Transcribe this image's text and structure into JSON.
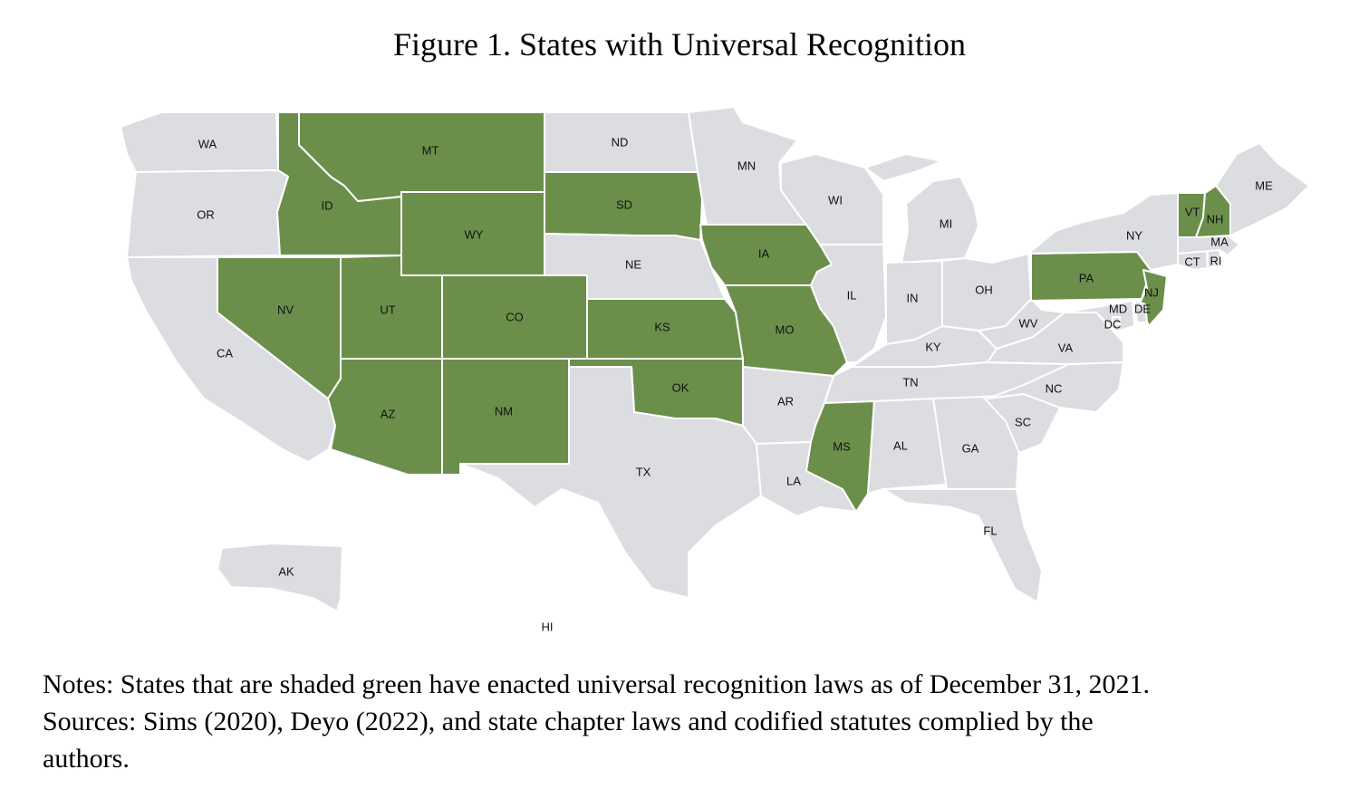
{
  "title": "Figure 1. States with Universal Recognition",
  "notes": {
    "line1": "Notes: States that are shaded green have enacted universal recognition laws as of December 31, 2021.",
    "line2": "Sources: Sims (2020), Deyo (2022), and state chapter laws and codified statutes complied by the",
    "line3": "authors."
  },
  "legend_colors": {
    "shaded": "#6b8f4b",
    "unshaded": "#dcdde0"
  },
  "states": {
    "WA": {
      "label": "WA",
      "shaded": false
    },
    "OR": {
      "label": "OR",
      "shaded": false
    },
    "CA": {
      "label": "CA",
      "shaded": false
    },
    "ID": {
      "label": "ID",
      "shaded": true
    },
    "MT": {
      "label": "MT",
      "shaded": true
    },
    "WY": {
      "label": "WY",
      "shaded": true
    },
    "NV": {
      "label": "NV",
      "shaded": true
    },
    "UT": {
      "label": "UT",
      "shaded": true
    },
    "CO": {
      "label": "CO",
      "shaded": true
    },
    "AZ": {
      "label": "AZ",
      "shaded": true
    },
    "NM": {
      "label": "NM",
      "shaded": true
    },
    "ND": {
      "label": "ND",
      "shaded": false
    },
    "SD": {
      "label": "SD",
      "shaded": true
    },
    "NE": {
      "label": "NE",
      "shaded": false
    },
    "KS": {
      "label": "KS",
      "shaded": true
    },
    "OK": {
      "label": "OK",
      "shaded": true
    },
    "TX": {
      "label": "TX",
      "shaded": false
    },
    "MN": {
      "label": "MN",
      "shaded": false
    },
    "IA": {
      "label": "IA",
      "shaded": true
    },
    "MO": {
      "label": "MO",
      "shaded": true
    },
    "AR": {
      "label": "AR",
      "shaded": false
    },
    "LA": {
      "label": "LA",
      "shaded": false
    },
    "WI": {
      "label": "WI",
      "shaded": false
    },
    "IL": {
      "label": "IL",
      "shaded": false
    },
    "MI": {
      "label": "MI",
      "shaded": false
    },
    "IN": {
      "label": "IN",
      "shaded": false
    },
    "OH": {
      "label": "OH",
      "shaded": false
    },
    "KY": {
      "label": "KY",
      "shaded": false
    },
    "TN": {
      "label": "TN",
      "shaded": false
    },
    "MS": {
      "label": "MS",
      "shaded": true
    },
    "AL": {
      "label": "AL",
      "shaded": false
    },
    "GA": {
      "label": "GA",
      "shaded": false
    },
    "FL": {
      "label": "FL",
      "shaded": false
    },
    "SC": {
      "label": "SC",
      "shaded": false
    },
    "NC": {
      "label": "NC",
      "shaded": false
    },
    "VA": {
      "label": "VA",
      "shaded": false
    },
    "WV": {
      "label": "WV",
      "shaded": false
    },
    "PA": {
      "label": "PA",
      "shaded": true
    },
    "NY": {
      "label": "NY",
      "shaded": false
    },
    "NJ": {
      "label": "NJ",
      "shaded": true
    },
    "DE": {
      "label": "DE",
      "shaded": false
    },
    "MD": {
      "label": "MD",
      "shaded": false
    },
    "DC": {
      "label": "DC",
      "shaded": false
    },
    "CT": {
      "label": "CT",
      "shaded": false
    },
    "RI": {
      "label": "RI",
      "shaded": false
    },
    "MA": {
      "label": "MA",
      "shaded": false
    },
    "VT": {
      "label": "VT",
      "shaded": true
    },
    "NH": {
      "label": "NH",
      "shaded": true
    },
    "ME": {
      "label": "ME",
      "shaded": false
    },
    "AK": {
      "label": "AK",
      "shaded": false
    },
    "HI": {
      "label": "HI",
      "shaded": false
    }
  }
}
